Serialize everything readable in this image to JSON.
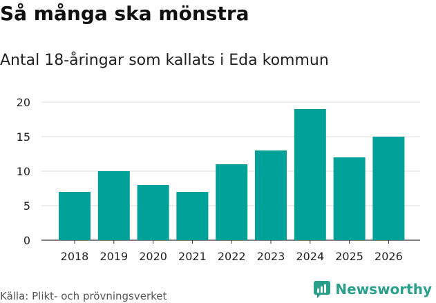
{
  "title": "Så många ska mönstra",
  "subtitle": "Antal 18-åringar som kallats i Eda kommun",
  "source": "Källa: Plikt- och prövningsverket",
  "brand": "Newsworthy",
  "colors": {
    "bar": "#00a199",
    "grid": "#dddddd",
    "brand": "#2aa08a"
  },
  "chart_data": {
    "type": "bar",
    "title": "Så många ska mönstra",
    "subtitle": "Antal 18-åringar som kallats i Eda kommun",
    "categories": [
      "2018",
      "2019",
      "2020",
      "2021",
      "2022",
      "2023",
      "2024",
      "2025",
      "2026"
    ],
    "values": [
      7,
      10,
      8,
      7,
      11,
      13,
      19,
      12,
      15
    ],
    "ylim": [
      0,
      20
    ],
    "yticks": [
      "0",
      "5",
      "10",
      "15",
      "20"
    ],
    "xlabel": "",
    "ylabel": "",
    "grid": true
  }
}
